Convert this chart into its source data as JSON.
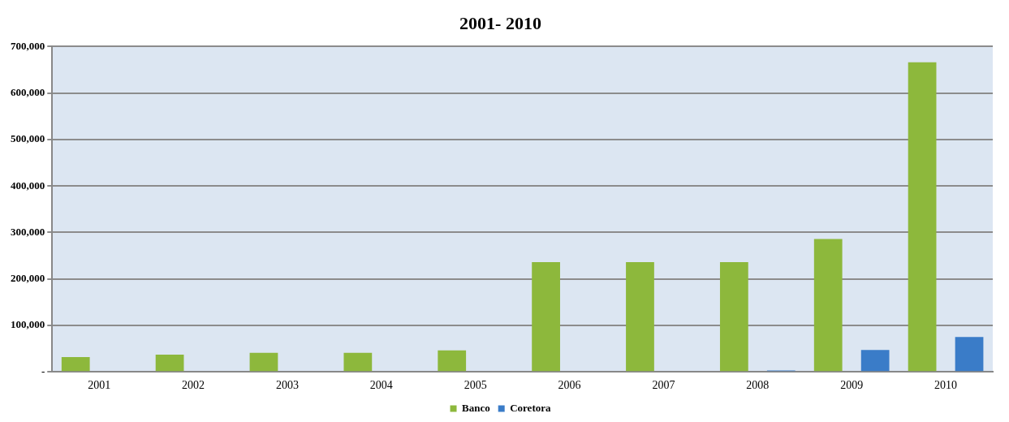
{
  "chart_data": {
    "type": "bar",
    "title": "2001- 2010",
    "categories": [
      "2001",
      "2002",
      "2003",
      "2004",
      "2005",
      "2006",
      "2007",
      "2008",
      "2009",
      "2010"
    ],
    "series": [
      {
        "name": "Banco",
        "color": "#8db83c",
        "values": [
          32000,
          37000,
          41000,
          41000,
          46000,
          236000,
          236000,
          236000,
          286000,
          666000
        ]
      },
      {
        "name": "Coretora",
        "color": "#3a7cc8",
        "values": [
          0,
          0,
          0,
          0,
          0,
          0,
          0,
          3000,
          47000,
          75000
        ]
      }
    ],
    "ylim": [
      0,
      700000
    ],
    "yticks": [
      {
        "value": 0,
        "label": "-"
      },
      {
        "value": 100000,
        "label": "100,000"
      },
      {
        "value": 200000,
        "label": "200,000"
      },
      {
        "value": 300000,
        "label": "300,000"
      },
      {
        "value": 400000,
        "label": "400,000"
      },
      {
        "value": 500000,
        "label": "500,000"
      },
      {
        "value": 600000,
        "label": "600,000"
      },
      {
        "value": 700000,
        "label": "700,000"
      }
    ],
    "grid": "y",
    "legend": "bottom"
  }
}
